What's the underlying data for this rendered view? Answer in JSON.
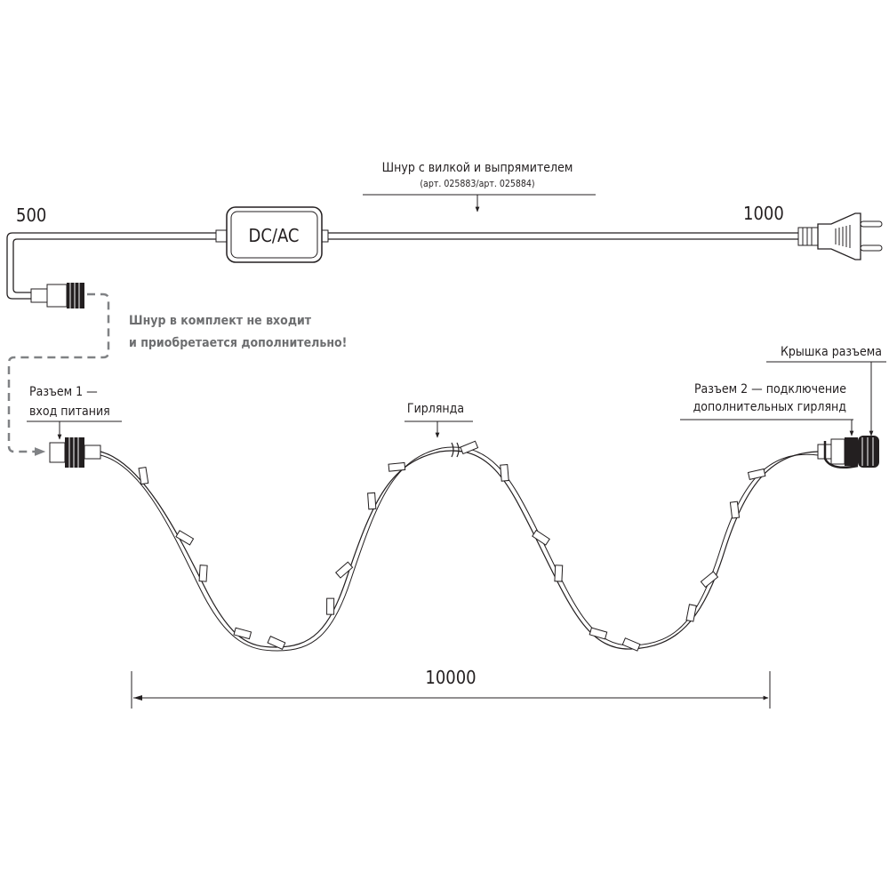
{
  "cord": {
    "title": "Шнур с вилкой и выпрямителем",
    "article": "(арт. 025883/арт. 025884)",
    "length_left": "500",
    "length_right": "1000",
    "rectifier_label": "DC/AC"
  },
  "note": {
    "line1": "Шнур в комплект не входит",
    "line2": "и приобретается дополнительно!"
  },
  "connector1": {
    "line1": "Разъем 1 —",
    "line2": "вход питания"
  },
  "garland": {
    "label": "Гирлянда"
  },
  "cap": {
    "label": "Крышка разъема"
  },
  "connector2": {
    "line1": "Разъем 2 — подключение",
    "line2": "дополнительных гирлянд"
  },
  "dimension": {
    "length": "10000"
  },
  "colors": {
    "line": "#231f20",
    "dashed": "#808285",
    "note": "#6d6e70"
  }
}
